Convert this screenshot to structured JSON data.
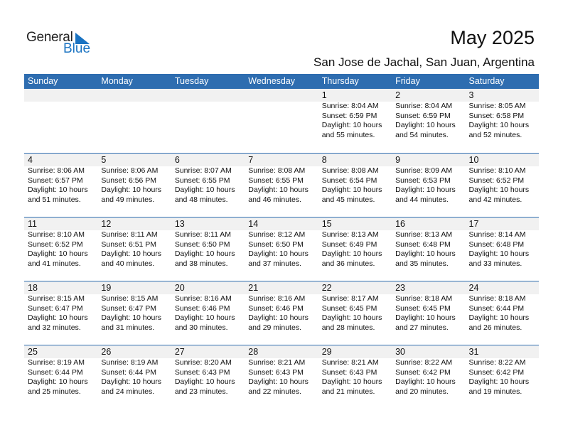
{
  "logo": {
    "text1": "General",
    "text2": "Blue"
  },
  "title": "May 2025",
  "location": "San Jose de Jachal, San Juan, Argentina",
  "colors": {
    "header": "#2e6db0",
    "band": "#f1f1f1",
    "logo_blue": "#1a73c2"
  },
  "weekdays": [
    "Sunday",
    "Monday",
    "Tuesday",
    "Wednesday",
    "Thursday",
    "Friday",
    "Saturday"
  ],
  "weeks": [
    [
      null,
      null,
      null,
      null,
      {
        "day": "1",
        "sunrise": "Sunrise: 8:04 AM",
        "sunset": "Sunset: 6:59 PM",
        "daylight1": "Daylight: 10 hours",
        "daylight2": "and 55 minutes."
      },
      {
        "day": "2",
        "sunrise": "Sunrise: 8:04 AM",
        "sunset": "Sunset: 6:59 PM",
        "daylight1": "Daylight: 10 hours",
        "daylight2": "and 54 minutes."
      },
      {
        "day": "3",
        "sunrise": "Sunrise: 8:05 AM",
        "sunset": "Sunset: 6:58 PM",
        "daylight1": "Daylight: 10 hours",
        "daylight2": "and 52 minutes."
      }
    ],
    [
      {
        "day": "4",
        "sunrise": "Sunrise: 8:06 AM",
        "sunset": "Sunset: 6:57 PM",
        "daylight1": "Daylight: 10 hours",
        "daylight2": "and 51 minutes."
      },
      {
        "day": "5",
        "sunrise": "Sunrise: 8:06 AM",
        "sunset": "Sunset: 6:56 PM",
        "daylight1": "Daylight: 10 hours",
        "daylight2": "and 49 minutes."
      },
      {
        "day": "6",
        "sunrise": "Sunrise: 8:07 AM",
        "sunset": "Sunset: 6:55 PM",
        "daylight1": "Daylight: 10 hours",
        "daylight2": "and 48 minutes."
      },
      {
        "day": "7",
        "sunrise": "Sunrise: 8:08 AM",
        "sunset": "Sunset: 6:55 PM",
        "daylight1": "Daylight: 10 hours",
        "daylight2": "and 46 minutes."
      },
      {
        "day": "8",
        "sunrise": "Sunrise: 8:08 AM",
        "sunset": "Sunset: 6:54 PM",
        "daylight1": "Daylight: 10 hours",
        "daylight2": "and 45 minutes."
      },
      {
        "day": "9",
        "sunrise": "Sunrise: 8:09 AM",
        "sunset": "Sunset: 6:53 PM",
        "daylight1": "Daylight: 10 hours",
        "daylight2": "and 44 minutes."
      },
      {
        "day": "10",
        "sunrise": "Sunrise: 8:10 AM",
        "sunset": "Sunset: 6:52 PM",
        "daylight1": "Daylight: 10 hours",
        "daylight2": "and 42 minutes."
      }
    ],
    [
      {
        "day": "11",
        "sunrise": "Sunrise: 8:10 AM",
        "sunset": "Sunset: 6:52 PM",
        "daylight1": "Daylight: 10 hours",
        "daylight2": "and 41 minutes."
      },
      {
        "day": "12",
        "sunrise": "Sunrise: 8:11 AM",
        "sunset": "Sunset: 6:51 PM",
        "daylight1": "Daylight: 10 hours",
        "daylight2": "and 40 minutes."
      },
      {
        "day": "13",
        "sunrise": "Sunrise: 8:11 AM",
        "sunset": "Sunset: 6:50 PM",
        "daylight1": "Daylight: 10 hours",
        "daylight2": "and 38 minutes."
      },
      {
        "day": "14",
        "sunrise": "Sunrise: 8:12 AM",
        "sunset": "Sunset: 6:50 PM",
        "daylight1": "Daylight: 10 hours",
        "daylight2": "and 37 minutes."
      },
      {
        "day": "15",
        "sunrise": "Sunrise: 8:13 AM",
        "sunset": "Sunset: 6:49 PM",
        "daylight1": "Daylight: 10 hours",
        "daylight2": "and 36 minutes."
      },
      {
        "day": "16",
        "sunrise": "Sunrise: 8:13 AM",
        "sunset": "Sunset: 6:48 PM",
        "daylight1": "Daylight: 10 hours",
        "daylight2": "and 35 minutes."
      },
      {
        "day": "17",
        "sunrise": "Sunrise: 8:14 AM",
        "sunset": "Sunset: 6:48 PM",
        "daylight1": "Daylight: 10 hours",
        "daylight2": "and 33 minutes."
      }
    ],
    [
      {
        "day": "18",
        "sunrise": "Sunrise: 8:15 AM",
        "sunset": "Sunset: 6:47 PM",
        "daylight1": "Daylight: 10 hours",
        "daylight2": "and 32 minutes."
      },
      {
        "day": "19",
        "sunrise": "Sunrise: 8:15 AM",
        "sunset": "Sunset: 6:47 PM",
        "daylight1": "Daylight: 10 hours",
        "daylight2": "and 31 minutes."
      },
      {
        "day": "20",
        "sunrise": "Sunrise: 8:16 AM",
        "sunset": "Sunset: 6:46 PM",
        "daylight1": "Daylight: 10 hours",
        "daylight2": "and 30 minutes."
      },
      {
        "day": "21",
        "sunrise": "Sunrise: 8:16 AM",
        "sunset": "Sunset: 6:46 PM",
        "daylight1": "Daylight: 10 hours",
        "daylight2": "and 29 minutes."
      },
      {
        "day": "22",
        "sunrise": "Sunrise: 8:17 AM",
        "sunset": "Sunset: 6:45 PM",
        "daylight1": "Daylight: 10 hours",
        "daylight2": "and 28 minutes."
      },
      {
        "day": "23",
        "sunrise": "Sunrise: 8:18 AM",
        "sunset": "Sunset: 6:45 PM",
        "daylight1": "Daylight: 10 hours",
        "daylight2": "and 27 minutes."
      },
      {
        "day": "24",
        "sunrise": "Sunrise: 8:18 AM",
        "sunset": "Sunset: 6:44 PM",
        "daylight1": "Daylight: 10 hours",
        "daylight2": "and 26 minutes."
      }
    ],
    [
      {
        "day": "25",
        "sunrise": "Sunrise: 8:19 AM",
        "sunset": "Sunset: 6:44 PM",
        "daylight1": "Daylight: 10 hours",
        "daylight2": "and 25 minutes."
      },
      {
        "day": "26",
        "sunrise": "Sunrise: 8:19 AM",
        "sunset": "Sunset: 6:44 PM",
        "daylight1": "Daylight: 10 hours",
        "daylight2": "and 24 minutes."
      },
      {
        "day": "27",
        "sunrise": "Sunrise: 8:20 AM",
        "sunset": "Sunset: 6:43 PM",
        "daylight1": "Daylight: 10 hours",
        "daylight2": "and 23 minutes."
      },
      {
        "day": "28",
        "sunrise": "Sunrise: 8:21 AM",
        "sunset": "Sunset: 6:43 PM",
        "daylight1": "Daylight: 10 hours",
        "daylight2": "and 22 minutes."
      },
      {
        "day": "29",
        "sunrise": "Sunrise: 8:21 AM",
        "sunset": "Sunset: 6:43 PM",
        "daylight1": "Daylight: 10 hours",
        "daylight2": "and 21 minutes."
      },
      {
        "day": "30",
        "sunrise": "Sunrise: 8:22 AM",
        "sunset": "Sunset: 6:42 PM",
        "daylight1": "Daylight: 10 hours",
        "daylight2": "and 20 minutes."
      },
      {
        "day": "31",
        "sunrise": "Sunrise: 8:22 AM",
        "sunset": "Sunset: 6:42 PM",
        "daylight1": "Daylight: 10 hours",
        "daylight2": "and 19 minutes."
      }
    ]
  ]
}
